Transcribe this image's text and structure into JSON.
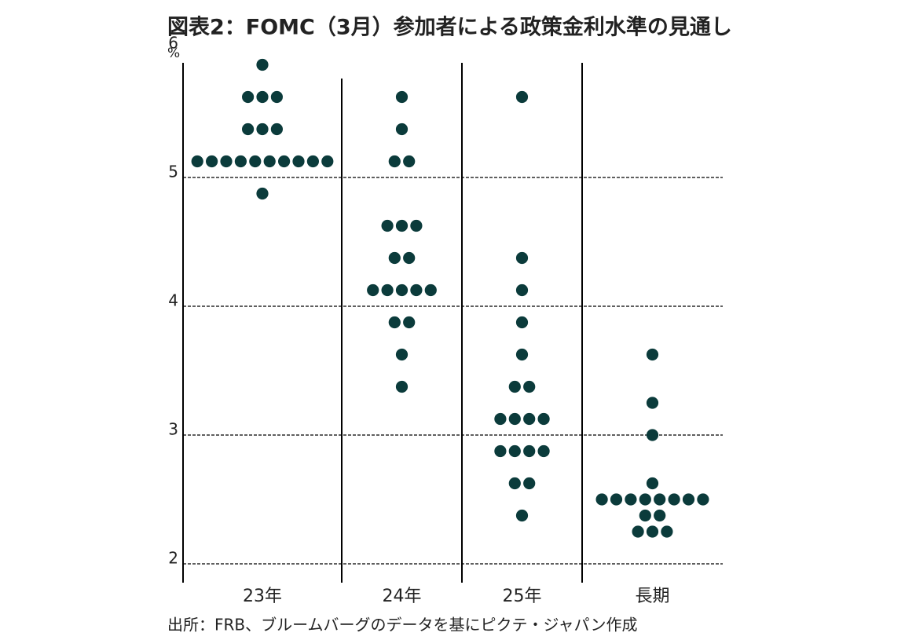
{
  "chart_data": {
    "type": "dot",
    "title": "図表2：FOMC（3月）参加者による政策金利水準の見通し",
    "y_unit": "%",
    "source": "出所：FRB、ブルームバーグのデータを基にピクテ・ジャパン作成",
    "categories": [
      "23年",
      "24年",
      "25年",
      "長期"
    ],
    "color": "#0b3b3b",
    "values": [
      [
        5.875,
        5.625,
        5.625,
        5.625,
        5.375,
        5.375,
        5.375,
        5.125,
        5.125,
        5.125,
        5.125,
        5.125,
        5.125,
        5.125,
        5.125,
        5.125,
        5.125,
        4.875
      ],
      [
        5.625,
        5.375,
        5.125,
        5.125,
        4.625,
        4.625,
        4.625,
        4.375,
        4.375,
        4.125,
        4.125,
        4.125,
        4.125,
        4.125,
        3.875,
        3.875,
        3.625,
        3.375
      ],
      [
        5.625,
        4.375,
        4.125,
        3.875,
        3.625,
        3.375,
        3.375,
        3.125,
        3.125,
        3.125,
        3.125,
        2.875,
        2.875,
        2.875,
        2.875,
        2.625,
        2.625,
        2.375
      ],
      [
        3.625,
        3.25,
        3.0,
        2.625,
        2.5,
        2.5,
        2.5,
        2.5,
        2.5,
        2.5,
        2.5,
        2.5,
        2.375,
        2.375,
        2.25,
        2.25,
        2.25
      ]
    ],
    "ylim": [
      2,
      6
    ],
    "yticks": [
      2,
      3,
      4,
      5,
      6
    ],
    "grid": true
  }
}
